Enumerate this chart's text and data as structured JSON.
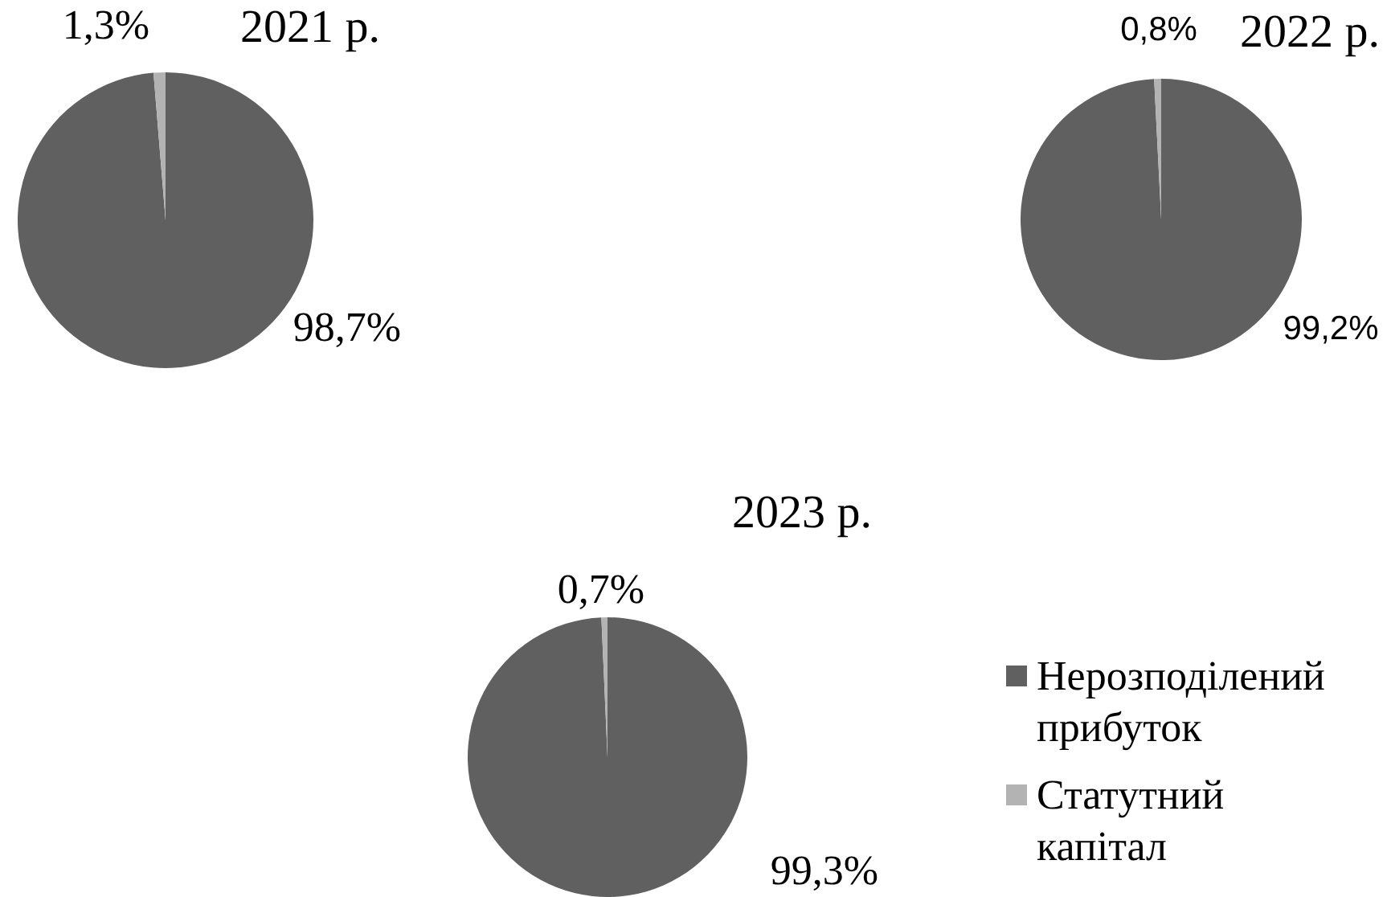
{
  "chart_data": [
    {
      "type": "pie",
      "title": "2021 р.",
      "categories": [
        null,
        null
      ],
      "values": [
        98.7,
        1.3
      ],
      "colors": [
        "#606060",
        "#b3b3b3"
      ],
      "value_labels": [
        "98,7%",
        "1,3%"
      ]
    },
    {
      "type": "pie",
      "title": "2022 р.",
      "categories": [
        null,
        null
      ],
      "values": [
        99.2,
        0.8
      ],
      "colors": [
        "#606060",
        "#b3b3b3"
      ],
      "value_labels": [
        "99,2%",
        "0,8%"
      ]
    },
    {
      "type": "pie",
      "title": "2023 р.",
      "categories": [
        "Нерозподілений прибуток",
        "Статутний капітал"
      ],
      "values": [
        99.3,
        0.7
      ],
      "colors": [
        "#606060",
        "#b3b3b3"
      ],
      "value_labels": [
        "99,3%",
        "0,7%"
      ],
      "legend": "right"
    }
  ]
}
